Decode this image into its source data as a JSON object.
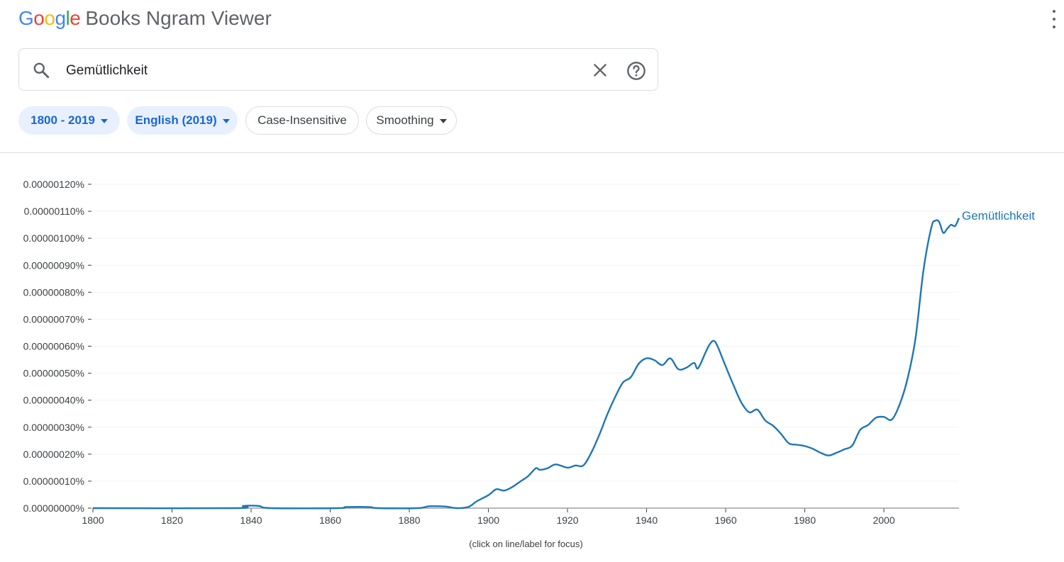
{
  "app": {
    "logo_letters": [
      "G",
      "o",
      "o",
      "g",
      "l",
      "e"
    ],
    "logo_colors": [
      "#4285F4",
      "#EA4335",
      "#FBBC05",
      "#4285F4",
      "#34A853",
      "#EA4335"
    ],
    "title_rest": "Books Ngram Viewer",
    "menu_icon": "more-vert-icon"
  },
  "search": {
    "value": "Gemütlichkeit",
    "search_icon": "search-icon",
    "clear_icon": "close-icon",
    "help_icon": "help-icon"
  },
  "filters": {
    "year_range": "1800 - 2019",
    "corpus": "English (2019)",
    "case": "Case-Insensitive",
    "smoothing": "Smoothing"
  },
  "colors": {
    "accent": "#1a73e8",
    "series": "#1f77b4",
    "chip_bg": "#e8f0fe"
  },
  "chart_data": {
    "type": "line",
    "x": [
      1800,
      1836,
      1838,
      1842,
      1845,
      1862,
      1864,
      1870,
      1872,
      1882,
      1885,
      1889,
      1892,
      1895,
      1897,
      1900,
      1902,
      1904,
      1906,
      1908,
      1910,
      1912,
      1913,
      1915,
      1917,
      1920,
      1922,
      1924,
      1926,
      1928,
      1930,
      1932,
      1934,
      1936,
      1938,
      1940,
      1942,
      1944,
      1946,
      1948,
      1950,
      1952,
      1953,
      1955,
      1956,
      1957,
      1958,
      1960,
      1962,
      1964,
      1966,
      1968,
      1970,
      1972,
      1974,
      1976,
      1978,
      1980,
      1982,
      1984,
      1986,
      1988,
      1990,
      1992,
      1994,
      1996,
      1998,
      2000,
      2002,
      2004,
      2006,
      2008,
      2010,
      2012,
      2013,
      2014,
      2015,
      2016,
      2017,
      2018,
      2019
    ],
    "series": [
      {
        "name": "Gemütlichkeit",
        "values": [
          0,
          0,
          8e-10,
          8e-10,
          0,
          0,
          4e-10,
          4e-10,
          0,
          0,
          7e-10,
          6e-10,
          0,
          5e-10,
          2.5e-09,
          4.8e-09,
          7e-09,
          6.5e-09,
          7.8e-09,
          9.8e-09,
          1.18e-08,
          1.48e-08,
          1.42e-08,
          1.48e-08,
          1.62e-08,
          1.5e-08,
          1.58e-08,
          1.58e-08,
          2.05e-08,
          2.7e-08,
          3.45e-08,
          4.1e-08,
          4.65e-08,
          4.85e-08,
          5.35e-08,
          5.55e-08,
          5.48e-08,
          5.3e-08,
          5.55e-08,
          5.15e-08,
          5.2e-08,
          5.38e-08,
          5.18e-08,
          5.8e-08,
          6.08e-08,
          6.2e-08,
          5.98e-08,
          5.25e-08,
          4.55e-08,
          3.9e-08,
          3.55e-08,
          3.65e-08,
          3.25e-08,
          3.05e-08,
          2.75e-08,
          2.4e-08,
          2.35e-08,
          2.3e-08,
          2.2e-08,
          2.05e-08,
          1.95e-08,
          2.05e-08,
          2.18e-08,
          2.32e-08,
          2.9e-08,
          3.08e-08,
          3.35e-08,
          3.38e-08,
          3.28e-08,
          3.85e-08,
          4.8e-08,
          6.3e-08,
          8.8e-08,
          1.04e-07,
          1.065e-07,
          1.06e-07,
          1.02e-07,
          1.035e-07,
          1.05e-07,
          1.045e-07,
          1.075e-07
        ]
      }
    ],
    "y_ticks": [
      "0.00000120%",
      "0.00000110%",
      "0.00000100%",
      "0.00000090%",
      "0.00000080%",
      "0.00000070%",
      "0.00000060%",
      "0.00000050%",
      "0.00000040%",
      "0.00000030%",
      "0.00000020%",
      "0.00000010%",
      "0.00000000%"
    ],
    "x_ticks": [
      "1800",
      "1820",
      "1840",
      "1860",
      "1880",
      "1900",
      "1920",
      "1940",
      "1960",
      "1980",
      "2000"
    ],
    "xlim": [
      1800,
      2019
    ],
    "ylim": [
      0,
      1.2e-07
    ],
    "grid": true,
    "series_label": "Gemütlichkeit",
    "note": "(click on line/label for focus)"
  }
}
